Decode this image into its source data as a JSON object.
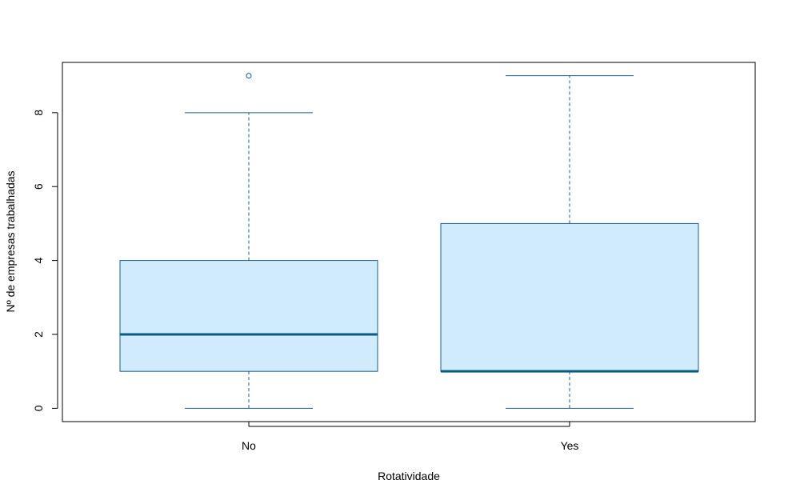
{
  "chart_data": {
    "type": "boxplot",
    "title": "",
    "xlabel": "Rotatividade",
    "ylabel": "Nº de empresas trabalhadas",
    "categories": [
      "No",
      "Yes"
    ],
    "ylim": [
      -0.36,
      9.36
    ],
    "yticks": [
      0,
      2,
      4,
      6,
      8
    ],
    "grid": false,
    "boxes": [
      {
        "category": "No",
        "whisker_low": 0,
        "q1": 1,
        "median": 2,
        "q3": 4,
        "whisker_high": 8,
        "outliers": [
          9
        ]
      },
      {
        "category": "Yes",
        "whisker_low": 0,
        "q1": 1,
        "median": 1,
        "q3": 5,
        "whisker_high": 9,
        "outliers": []
      }
    ],
    "colors": {
      "box_fill": "#d0ebfb",
      "box_border": "#1a5f8a",
      "median": "#0b5a80",
      "whisker": "#1a5f8a",
      "outlier": "#1a5f8a",
      "frame": "#000000"
    }
  }
}
